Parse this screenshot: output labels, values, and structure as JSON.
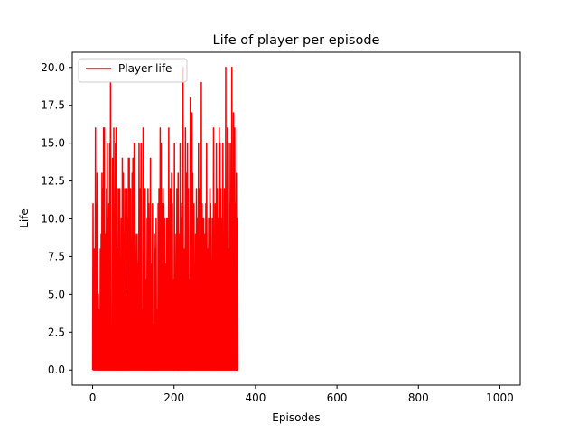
{
  "chart_data": {
    "type": "line",
    "title": "Life of player per episode",
    "xlabel": "Episodes",
    "ylabel": "Life",
    "xlim": [
      -50,
      1050
    ],
    "ylim": [
      -1.0,
      21.0
    ],
    "xticks": [
      0,
      200,
      400,
      600,
      800,
      1000
    ],
    "yticks": [
      0.0,
      2.5,
      5.0,
      7.5,
      10.0,
      12.5,
      15.0,
      17.5,
      20.0
    ],
    "legend": "top-left",
    "grid": false,
    "series": [
      {
        "name": "Player life",
        "color": "#ff0000",
        "x_start": 0,
        "x_step": 1,
        "values": [
          0,
          11,
          0,
          3,
          8,
          0,
          0,
          16,
          0,
          11,
          0,
          13,
          0,
          0,
          5,
          0,
          0,
          4,
          0,
          8,
          0,
          9,
          0,
          13,
          0,
          12,
          0,
          16,
          0,
          16,
          0,
          0,
          9,
          0,
          12,
          0,
          15,
          0,
          10,
          0,
          11,
          0,
          15,
          0,
          19,
          0,
          2,
          0,
          0,
          14,
          0,
          0,
          16,
          0,
          10,
          0,
          15,
          0,
          16,
          0,
          0,
          8,
          0,
          12,
          0,
          0,
          12,
          0,
          3,
          0,
          10,
          0,
          0,
          14,
          0,
          13,
          0,
          9,
          0,
          12,
          0,
          0,
          5,
          0,
          12,
          0,
          10,
          0,
          14,
          0,
          14,
          0,
          0,
          12,
          0,
          6,
          0,
          13,
          0,
          14,
          0,
          0,
          15,
          0,
          15,
          0,
          2,
          0,
          9,
          0,
          7,
          0,
          9,
          0,
          15,
          0,
          0,
          12,
          0,
          15,
          0,
          4,
          0,
          0,
          16,
          0,
          7,
          0,
          0,
          12,
          0,
          6,
          0,
          0,
          10,
          0,
          12,
          0,
          11,
          0,
          10,
          0,
          14,
          0,
          7,
          0,
          0,
          11,
          0,
          3,
          0,
          0,
          9,
          0,
          8,
          0,
          10,
          0,
          0,
          4,
          0,
          11,
          0,
          12,
          0,
          0,
          16,
          0,
          15,
          0,
          0,
          11,
          0,
          12,
          0,
          11,
          0,
          10,
          0,
          7,
          0,
          0,
          10,
          0,
          10,
          0,
          0,
          16,
          0,
          10,
          0,
          12,
          0,
          0,
          13,
          0,
          11,
          0,
          6,
          0,
          0,
          15,
          0,
          9,
          0,
          5,
          0,
          12,
          0,
          0,
          13,
          0,
          0,
          9,
          0,
          15,
          0,
          10,
          0,
          11,
          0,
          0,
          20,
          0,
          3,
          0,
          8,
          0,
          16,
          0,
          13,
          0,
          0,
          15,
          0,
          12,
          0,
          6,
          0,
          0,
          18,
          0,
          15,
          0,
          17,
          0,
          13,
          0,
          0,
          11,
          0,
          7,
          0,
          9,
          0,
          12,
          0,
          10,
          0,
          0,
          15,
          0,
          12,
          0,
          0,
          11,
          0,
          19,
          0,
          11,
          0,
          10,
          0,
          10,
          0,
          0,
          9,
          0,
          11,
          0,
          15,
          0,
          0,
          8,
          0,
          10,
          0,
          0,
          12,
          0,
          11,
          0,
          3,
          0,
          10,
          0,
          0,
          16,
          0,
          8,
          0,
          11,
          0,
          0,
          15,
          0,
          12,
          0,
          10,
          0,
          0,
          16,
          0,
          15,
          0,
          12,
          0,
          10,
          0,
          0,
          15,
          0,
          9,
          0,
          12,
          0,
          0,
          20,
          0,
          10,
          0,
          16,
          0,
          8,
          0,
          0,
          15,
          0,
          11,
          0,
          15,
          0,
          20,
          0,
          9,
          0,
          17,
          0,
          0,
          16,
          0,
          11,
          0,
          13,
          0,
          0,
          10,
          0
        ]
      }
    ]
  }
}
